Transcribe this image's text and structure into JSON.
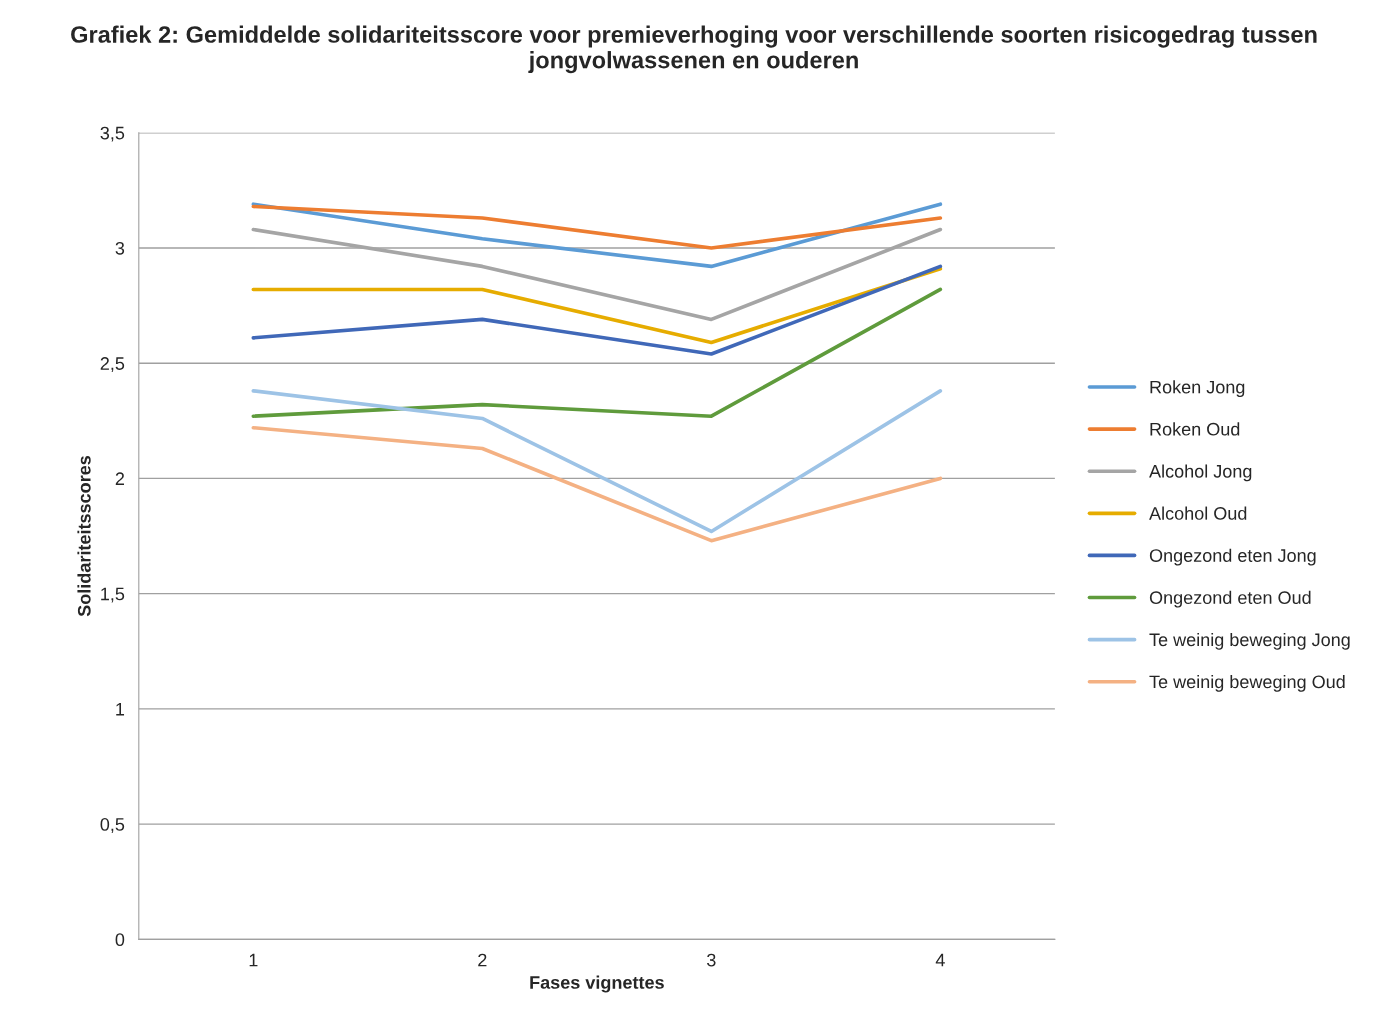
{
  "chart_data": {
    "type": "line",
    "title": "Grafiek 2: Gemiddelde solidariteitsscore voor premieverhoging voor verschillende soorten risicogedrag tussen jongvolwassenen en ouderen",
    "xlabel": "Fases vignettes",
    "ylabel": "Solidariteitsscores",
    "categories": [
      "1",
      "2",
      "3",
      "4"
    ],
    "series": [
      {
        "name": "Roken Jong",
        "color": "#5b9bd5",
        "values": [
          3.19,
          3.04,
          2.92,
          3.19
        ]
      },
      {
        "name": "Roken Oud",
        "color": "#ed7d31",
        "values": [
          3.18,
          3.13,
          3.0,
          3.13
        ]
      },
      {
        "name": "Alcohol Jong",
        "color": "#a5a5a5",
        "values": [
          3.08,
          2.92,
          2.69,
          3.08
        ]
      },
      {
        "name": "Alcohol Oud",
        "color": "#e6ac00",
        "values": [
          2.82,
          2.82,
          2.59,
          2.91
        ]
      },
      {
        "name": "Ongezond eten Jong",
        "color": "#4068b8",
        "values": [
          2.61,
          2.69,
          2.54,
          2.92
        ]
      },
      {
        "name": "Ongezond eten Oud",
        "color": "#5f9b3c",
        "values": [
          2.27,
          2.32,
          2.27,
          2.82
        ]
      },
      {
        "name": "Te weinig beweging Jong",
        "color": "#9dc3e6",
        "values": [
          2.38,
          2.26,
          1.77,
          2.38
        ]
      },
      {
        "name": "Te weinig beweging Oud",
        "color": "#f4b183",
        "values": [
          2.22,
          2.13,
          1.73,
          2.0
        ]
      }
    ],
    "ylim": [
      0,
      3.5
    ],
    "yticks": [
      {
        "value": 0,
        "label": "0"
      },
      {
        "value": 0.5,
        "label": "0,5"
      },
      {
        "value": 1,
        "label": "1"
      },
      {
        "value": 1.5,
        "label": "1,5"
      },
      {
        "value": 2,
        "label": "2"
      },
      {
        "value": 2.5,
        "label": "2,5"
      },
      {
        "value": 3,
        "label": "3"
      },
      {
        "value": 3.5,
        "label": "3,5"
      }
    ],
    "grid": "y",
    "legend": "right",
    "marker": "none",
    "line_style": "solid"
  }
}
